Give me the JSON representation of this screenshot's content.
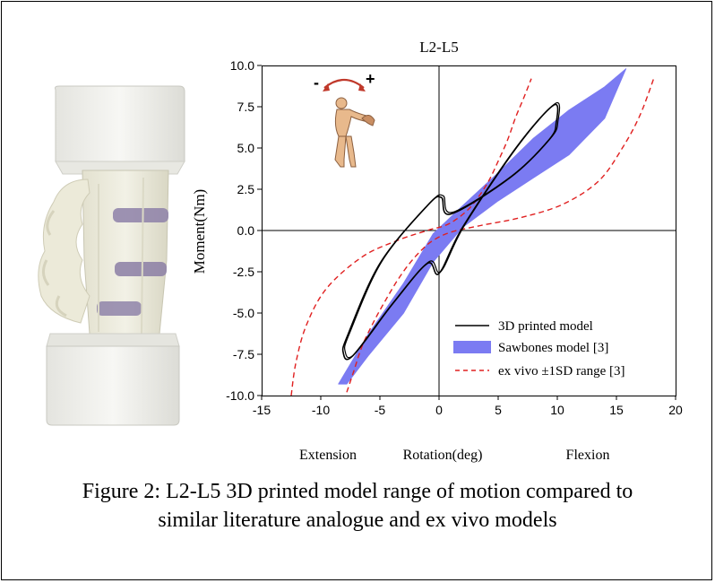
{
  "figure": {
    "caption_line1": "Figure 2: L2-L5 3D printed model range of motion compared to",
    "caption_line2": "similar literature analogue and ex vivo models"
  },
  "icon": {
    "minus": "-",
    "plus": "+"
  },
  "chart_data": {
    "type": "line",
    "title": "L2-L5",
    "xlabel": "Rotation(deg)",
    "ylabel": "Moment(Nm)",
    "xlim": [
      -15,
      20
    ],
    "ylim": [
      -10,
      10
    ],
    "xticks": [
      -15,
      -10,
      -5,
      0,
      5,
      10,
      15,
      20
    ],
    "yticks": [
      -10.0,
      -7.5,
      -5.0,
      -2.5,
      0.0,
      2.5,
      5.0,
      7.5,
      10.0
    ],
    "xtick_labels": [
      "-15",
      "-10",
      "-5",
      "0",
      "5",
      "10",
      "15",
      "20"
    ],
    "ytick_labels": [
      "-10.0",
      "-7.5",
      "-5.0",
      "-2.5",
      "0.0",
      "2.5",
      "5.0",
      "7.5",
      "10.0"
    ],
    "annotations": {
      "left": "Extension",
      "right": "Flexion"
    },
    "legend_position": "bottom-right",
    "colors": {
      "printed": "#000000",
      "sawbones": "#7b7bf2",
      "exvivo": "#e02020"
    },
    "series": [
      {
        "name": "3D printed model",
        "style": "solid",
        "x": [
          -8.1,
          -7.3,
          -4.0,
          -1.0,
          0.0,
          2.0,
          6.5,
          9.7,
          9.9,
          9.3,
          6.0,
          1.0,
          0.2,
          -1.0,
          -5.0,
          -7.7,
          -8.1
        ],
        "y": [
          -7.4,
          -7.6,
          -4.5,
          -2.0,
          -2.6,
          0.2,
          5.0,
          7.6,
          6.5,
          5.5,
          3.2,
          1.0,
          2.0,
          1.5,
          -2.0,
          -6.3,
          -7.4
        ]
      },
      {
        "name": "Sawbones model [3]",
        "style": "band",
        "upper_x": [
          -8.5,
          -6.0,
          -3.0,
          -0.5,
          2.0,
          5.0,
          8.0,
          11.0,
          14.0,
          15.8
        ],
        "upper_y": [
          -9.3,
          -6.3,
          -3.2,
          -0.2,
          1.5,
          3.5,
          5.6,
          7.3,
          8.7,
          9.8
        ],
        "lower_x": [
          -7.8,
          -6.0,
          -3.0,
          -0.5,
          2.0,
          5.0,
          8.0,
          11.0,
          14.0,
          15.8
        ],
        "lower_y": [
          -9.3,
          -7.6,
          -5.0,
          -1.9,
          0.2,
          1.8,
          3.2,
          4.6,
          6.8,
          9.8
        ]
      },
      {
        "name": "ex vivo ±1SD range [3]",
        "style": "dashed",
        "x": [
          -12.5,
          -12.1,
          -11.2,
          -9.5,
          -6.5,
          -3.5,
          -1.0,
          0.5,
          1.5,
          2.5,
          3.3,
          4.2,
          5.0,
          5.8,
          6.5,
          7.2,
          7.8
        ],
        "y": [
          -10.0,
          -8.0,
          -5.7,
          -3.5,
          -1.6,
          -0.6,
          0.0,
          0.3,
          0.7,
          1.3,
          2.0,
          3.0,
          4.2,
          5.5,
          6.9,
          8.1,
          9.2
        ]
      },
      {
        "name": "",
        "style": "dashed",
        "x": [
          -7.8,
          -7.2,
          -6.5,
          -5.5,
          -4.5,
          -3.5,
          -2.5,
          -1.5,
          -0.5,
          1.0,
          3.5,
          7.0,
          10.5,
          13.5,
          15.5,
          17.0,
          18.2
        ],
        "y": [
          -9.8,
          -8.5,
          -7.0,
          -5.5,
          -4.2,
          -3.0,
          -2.0,
          -1.2,
          -0.6,
          -0.1,
          0.3,
          0.8,
          1.6,
          3.0,
          5.0,
          7.0,
          9.3
        ]
      }
    ]
  }
}
